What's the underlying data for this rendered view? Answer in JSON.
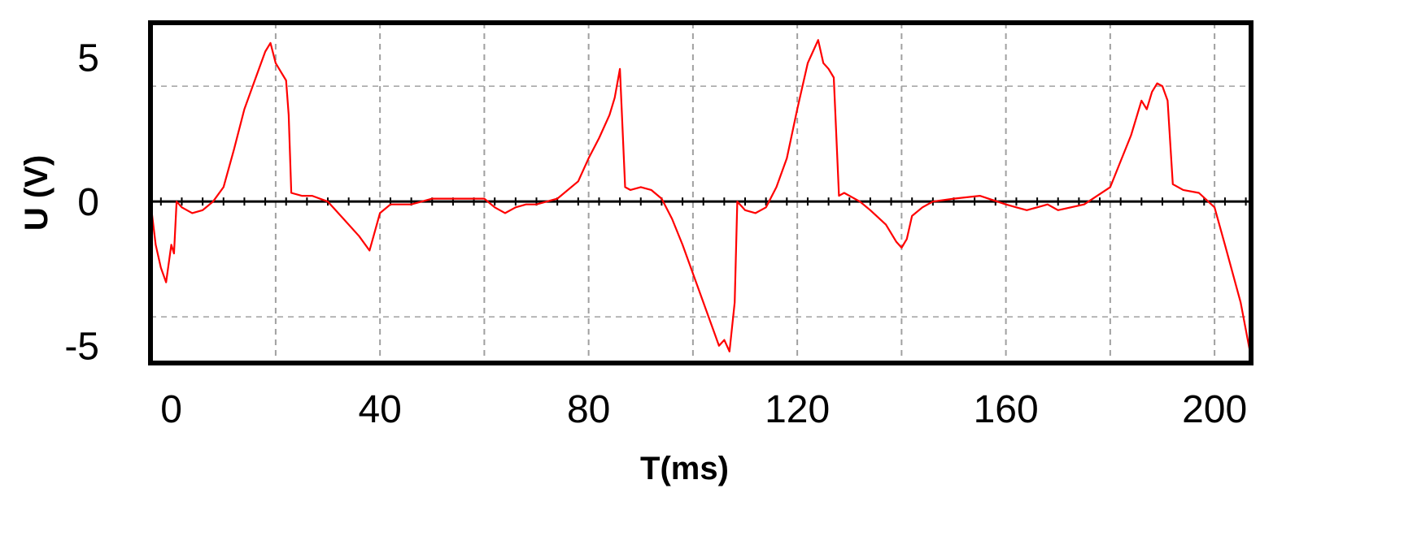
{
  "chart_data": {
    "type": "line",
    "title": "",
    "xlabel": "T(ms)",
    "ylabel": "U (V)",
    "xlim": [
      -4,
      207
    ],
    "ylim": [
      -5.6,
      6.2
    ],
    "x_ticks": [
      0,
      40,
      80,
      120,
      160,
      200
    ],
    "y_ticks": [
      5,
      0,
      -5
    ],
    "grid": true,
    "baseline_y": 0,
    "colors": {
      "signal": "#ff0000",
      "grid": "#a0a0a0",
      "frame": "#000000",
      "baseline": "#000000"
    },
    "series": [
      {
        "x": [
          -4,
          -3,
          -2,
          -1,
          0,
          0.5,
          1,
          2,
          4,
          6,
          8,
          10,
          12,
          14,
          16,
          18,
          19,
          20,
          21,
          22,
          22.5,
          23,
          25,
          27,
          30,
          33,
          36,
          38,
          40,
          42,
          44,
          46,
          48,
          50,
          55,
          60,
          62,
          64,
          66,
          68,
          70,
          74,
          78,
          80,
          82,
          84,
          85,
          86,
          87,
          88,
          90,
          92,
          94,
          96,
          98,
          100,
          102,
          104,
          105,
          106,
          107,
          108,
          108.5,
          109,
          110,
          112,
          114,
          116,
          118,
          120,
          122,
          123,
          124,
          125,
          126,
          127,
          128,
          129,
          132,
          134,
          137,
          139,
          140,
          141,
          142,
          144,
          146,
          150,
          155,
          160,
          162,
          164,
          166,
          168,
          170,
          175,
          180,
          182,
          184,
          186,
          187,
          188,
          189,
          190,
          191,
          192,
          194,
          197,
          200,
          202,
          205,
          207
        ],
        "y": [
          0,
          -1.5,
          -2.3,
          -2.8,
          -1.5,
          -1.8,
          0,
          -0.2,
          -0.4,
          -0.3,
          0,
          0.5,
          1.8,
          3.2,
          4.2,
          5.2,
          5.5,
          4.8,
          4.5,
          4.2,
          3.0,
          0.3,
          0.2,
          0.2,
          0,
          -0.6,
          -1.2,
          -1.7,
          -0.4,
          -0.1,
          -0.1,
          -0.1,
          0,
          0.1,
          0.1,
          0.1,
          -0.2,
          -0.4,
          -0.2,
          -0.1,
          -0.1,
          0.1,
          0.7,
          1.5,
          2.2,
          3.0,
          3.6,
          4.6,
          0.5,
          0.4,
          0.5,
          0.4,
          0.1,
          -0.6,
          -1.5,
          -2.5,
          -3.5,
          -4.5,
          -5.0,
          -4.8,
          -5.2,
          -3.5,
          0,
          -0.1,
          -0.3,
          -0.4,
          -0.2,
          0.5,
          1.5,
          3.2,
          4.8,
          5.2,
          5.6,
          4.8,
          4.6,
          4.3,
          0.2,
          0.3,
          0,
          -0.3,
          -0.8,
          -1.4,
          -1.6,
          -1.3,
          -0.5,
          -0.2,
          0,
          0.1,
          0.2,
          -0.1,
          -0.2,
          -0.3,
          -0.2,
          -0.1,
          -0.3,
          -0.1,
          0.5,
          1.4,
          2.3,
          3.5,
          3.2,
          3.8,
          4.1,
          4.0,
          3.5,
          0.6,
          0.4,
          0.3,
          -0.2,
          -1.5,
          -3.5,
          -5.4
        ]
      }
    ]
  }
}
